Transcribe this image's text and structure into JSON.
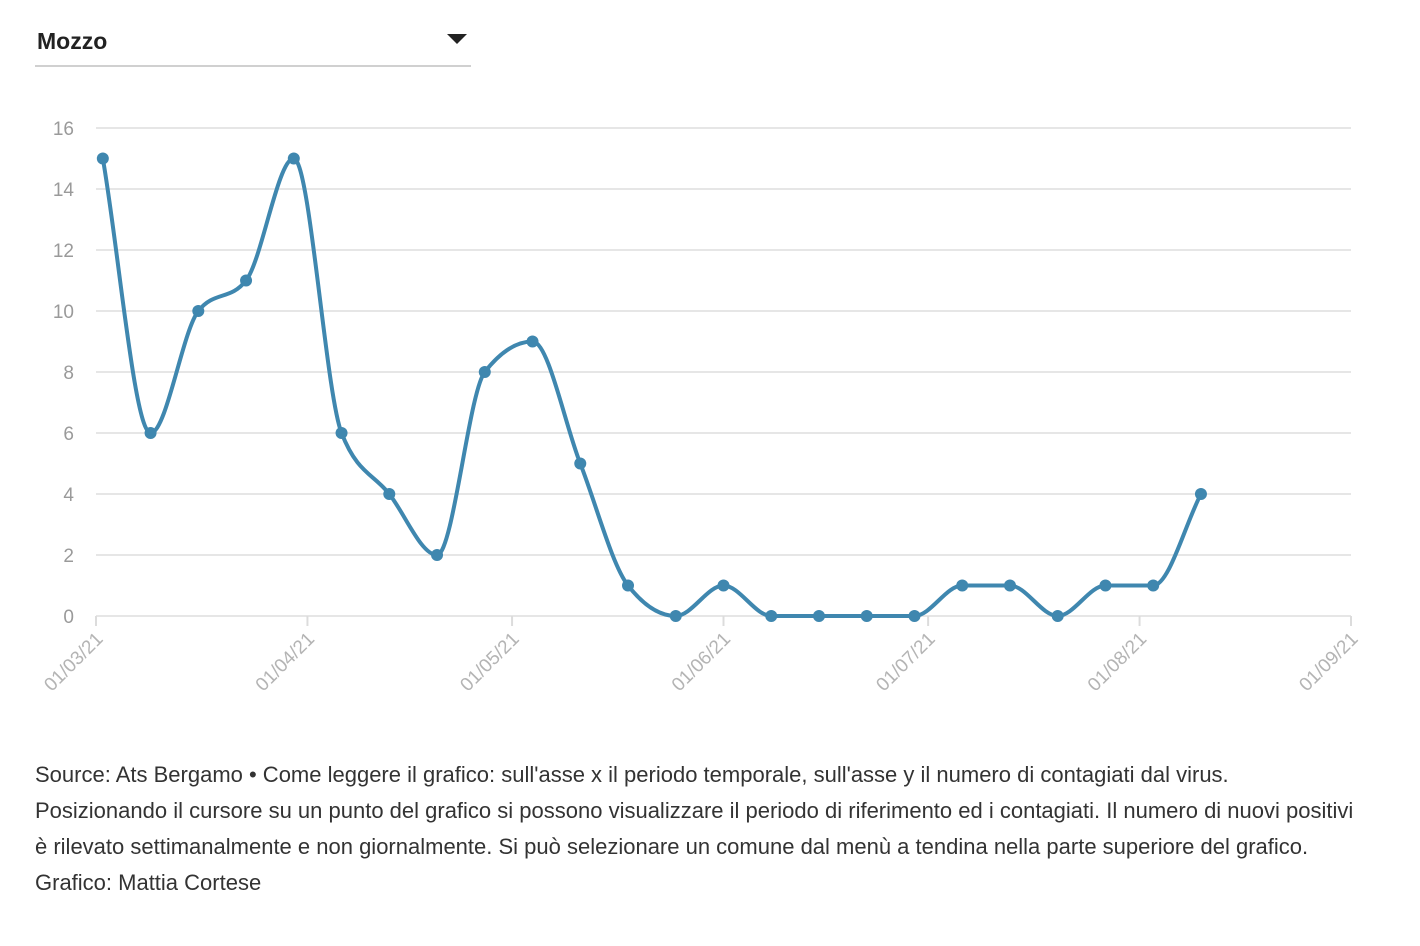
{
  "selector": {
    "selected": "Mozzo"
  },
  "chart_data": {
    "type": "line",
    "title": "",
    "xlabel": "",
    "ylabel": "",
    "x_ticks": [
      "01/03/21",
      "01/04/21",
      "01/05/21",
      "01/06/21",
      "01/07/21",
      "01/08/21",
      "01/09/21"
    ],
    "y_ticks": [
      0,
      2,
      4,
      6,
      8,
      10,
      12,
      14,
      16
    ],
    "xlim": [
      "2021-03-01",
      "2021-09-01"
    ],
    "ylim": [
      0,
      16
    ],
    "grid": true,
    "line_color": "#3f87af",
    "series": [
      {
        "points": [
          {
            "x": "2021-03-02",
            "y": 15
          },
          {
            "x": "2021-03-09",
            "y": 6
          },
          {
            "x": "2021-03-16",
            "y": 10
          },
          {
            "x": "2021-03-23",
            "y": 11
          },
          {
            "x": "2021-03-30",
            "y": 15
          },
          {
            "x": "2021-04-06",
            "y": 6
          },
          {
            "x": "2021-04-13",
            "y": 4
          },
          {
            "x": "2021-04-20",
            "y": 2
          },
          {
            "x": "2021-04-27",
            "y": 8
          },
          {
            "x": "2021-05-04",
            "y": 9
          },
          {
            "x": "2021-05-11",
            "y": 5
          },
          {
            "x": "2021-05-18",
            "y": 1
          },
          {
            "x": "2021-05-25",
            "y": 0
          },
          {
            "x": "2021-06-01",
            "y": 1
          },
          {
            "x": "2021-06-08",
            "y": 0
          },
          {
            "x": "2021-06-15",
            "y": 0
          },
          {
            "x": "2021-06-22",
            "y": 0
          },
          {
            "x": "2021-06-29",
            "y": 0
          },
          {
            "x": "2021-07-06",
            "y": 1
          },
          {
            "x": "2021-07-13",
            "y": 1
          },
          {
            "x": "2021-07-20",
            "y": 0
          },
          {
            "x": "2021-07-27",
            "y": 1
          },
          {
            "x": "2021-08-03",
            "y": 1
          },
          {
            "x": "2021-08-10",
            "y": 4
          }
        ]
      }
    ]
  },
  "caption": {
    "text": "Source: Ats Bergamo • Come leggere il grafico: sull'asse x il periodo temporale, sull'asse y il numero di contagiati dal virus. Posizionando il cursore su un punto del grafico si possono visualizzare il periodo di riferimento ed i contagiati. Il numero di nuovi positivi è rilevato settimanalmente e non giornalmente. Si può selezionare un comune dal menù a tendina nella parte superiore del grafico.",
    "credit": "Grafico: Mattia Cortese"
  }
}
